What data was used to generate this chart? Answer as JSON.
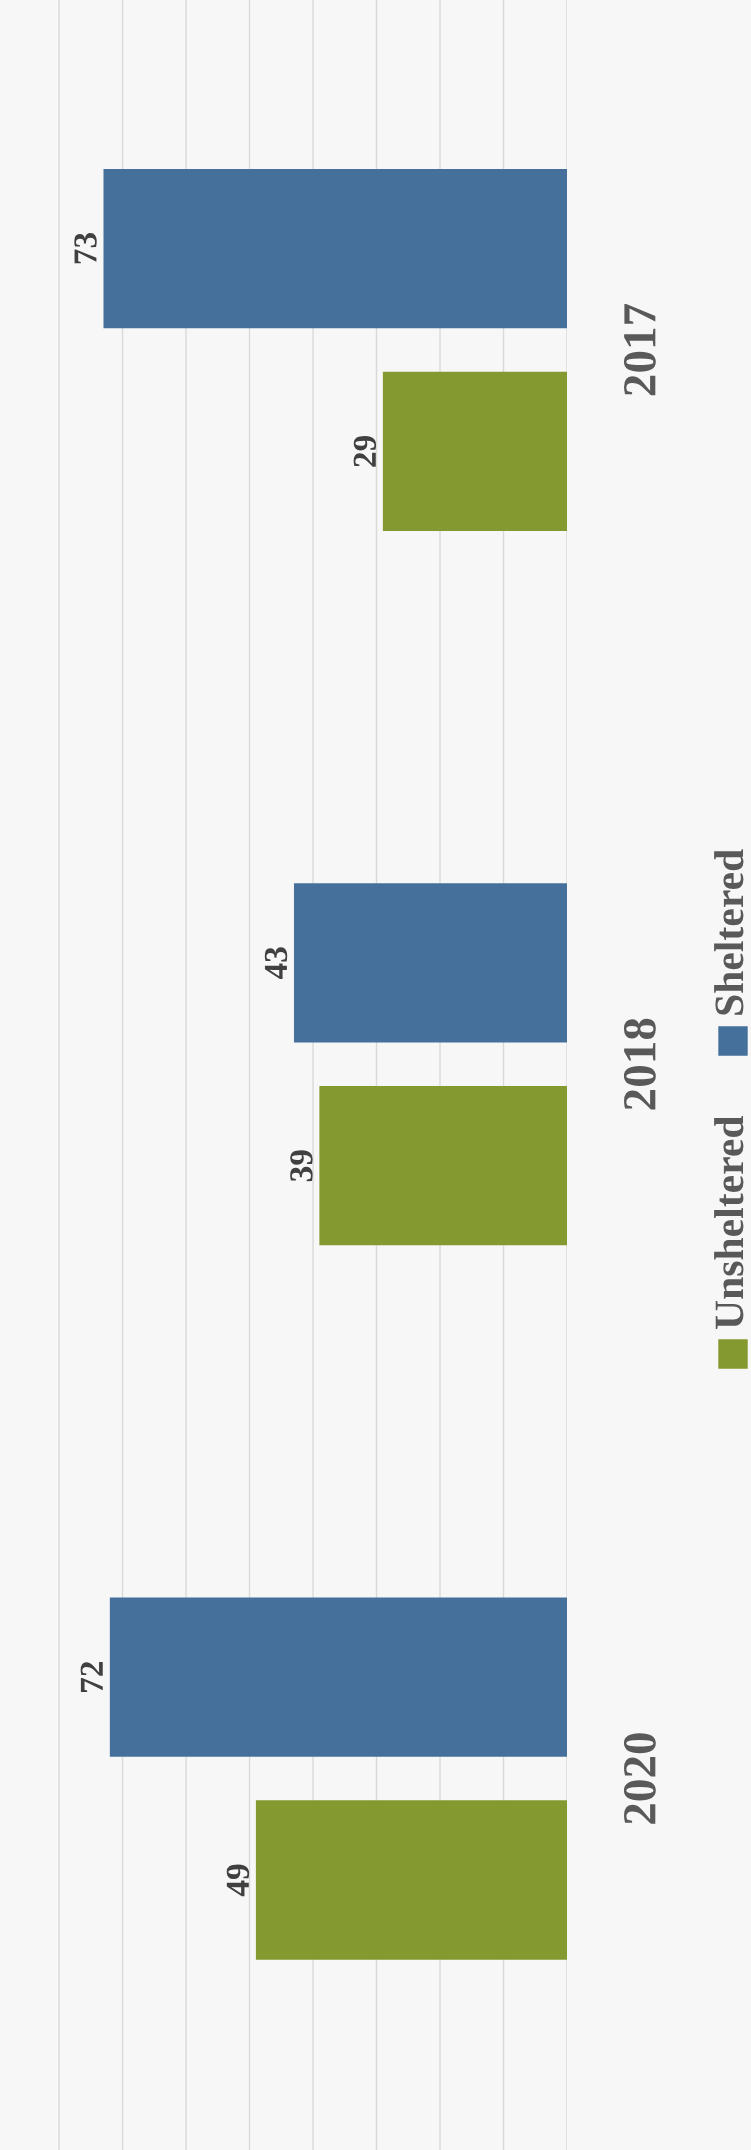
{
  "chart_data": {
    "type": "bar",
    "orientation": "horizontal",
    "categories": [
      "2017",
      "2018",
      "2020"
    ],
    "series": [
      {
        "name": "Sheltered",
        "color": "#44709b",
        "values": [
          73,
          43,
          72
        ]
      },
      {
        "name": "Unsheltered",
        "color": "#84992f",
        "values": [
          29,
          39,
          49
        ]
      }
    ],
    "xlim": [
      89.3,
      0
    ],
    "xticks": [
      {
        "value": 0,
        "label": null
      },
      {
        "value": 10,
        "label": null
      },
      {
        "value": 20,
        "label": null
      },
      {
        "value": 30,
        "label": null
      },
      {
        "value": 40,
        "label": null
      },
      {
        "value": 50,
        "label": null
      },
      {
        "value": 60,
        "label": null
      },
      {
        "value": 70,
        "label": null
      },
      {
        "value": 80,
        "label": null
      }
    ],
    "grid": "x",
    "data_labels": true,
    "legend": "right",
    "tick_labels": "y"
  }
}
